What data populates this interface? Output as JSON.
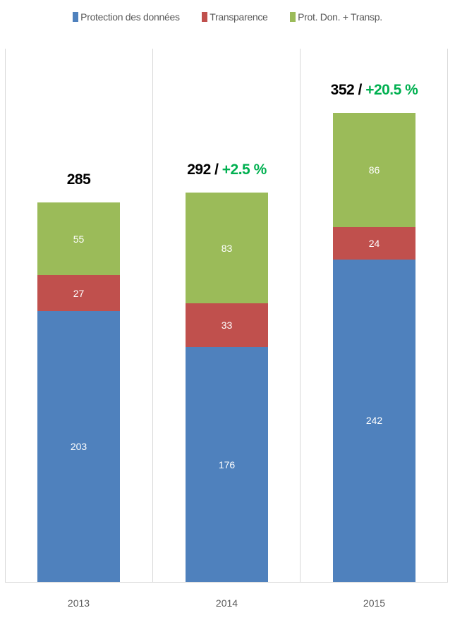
{
  "chart_data": {
    "type": "bar",
    "stacked": true,
    "title": "",
    "xlabel": "",
    "ylabel": "",
    "categories": [
      "2013",
      "2014",
      "2015"
    ],
    "series": [
      {
        "name": "Protection des données",
        "color": "#4f81bd",
        "values": [
          203,
          176,
          242
        ]
      },
      {
        "name": "Transparence",
        "color": "#c0504d",
        "values": [
          27,
          33,
          24
        ]
      },
      {
        "name": "Prot. Don. + Transp.",
        "color": "#9bbb59",
        "values": [
          55,
          83,
          86
        ]
      }
    ],
    "totals": [
      285,
      292,
      352
    ],
    "total_labels": [
      {
        "total": "285",
        "separator": "",
        "change": ""
      },
      {
        "total": "292",
        "separator": " / ",
        "change": "+2.5 %"
      },
      {
        "total": "352",
        "separator": " / ",
        "change": "+20.5 %"
      }
    ],
    "change_color": "#00b050",
    "legend_position": "top",
    "grid": "vertical category separators",
    "ylim": [
      0,
      400
    ]
  },
  "legend": [
    {
      "label": "Protection des données",
      "color": "#4f81bd"
    },
    {
      "label": "Transparence",
      "color": "#c0504d"
    },
    {
      "label": "Prot. Don. + Transp.",
      "color": "#9bbb59"
    }
  ]
}
